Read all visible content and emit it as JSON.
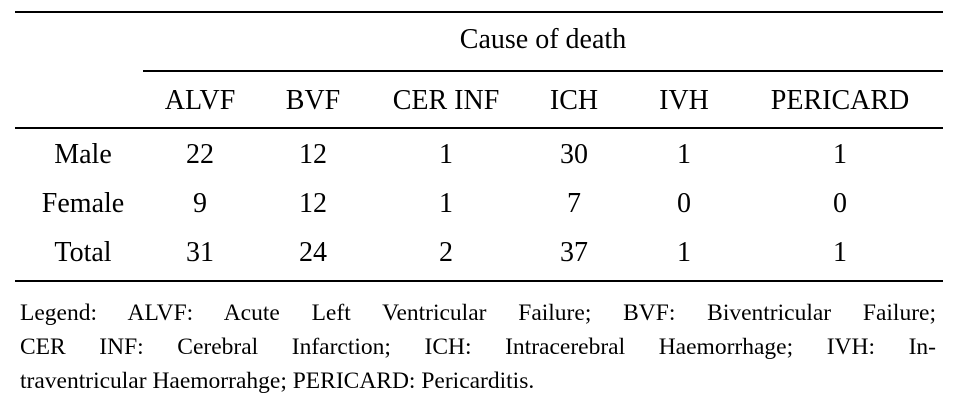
{
  "table": {
    "spanner_header": "Cause of death",
    "columns": [
      "ALVF",
      "BVF",
      "CER INF",
      "ICH",
      "IVH",
      "PERICARD"
    ],
    "rows": [
      {
        "label": "Male",
        "values": [
          "22",
          "12",
          "1",
          "30",
          "1",
          "1"
        ]
      },
      {
        "label": "Female",
        "values": [
          "9",
          "12",
          "1",
          "7",
          "0",
          "0"
        ]
      },
      {
        "label": "Total",
        "values": [
          "31",
          "24",
          "2",
          "37",
          "1",
          "1"
        ]
      }
    ]
  },
  "legend": {
    "line1": "Legend: ALVF: Acute Left Ventricular Failure; BVF: Biventricular Failure;",
    "line2": "CER INF: Cerebral Infarction; ICH: Intracerebral Haemorrhage; IVH: In-",
    "line3": "traventricular Haemorrahge; PERICARD: Pericarditis."
  }
}
